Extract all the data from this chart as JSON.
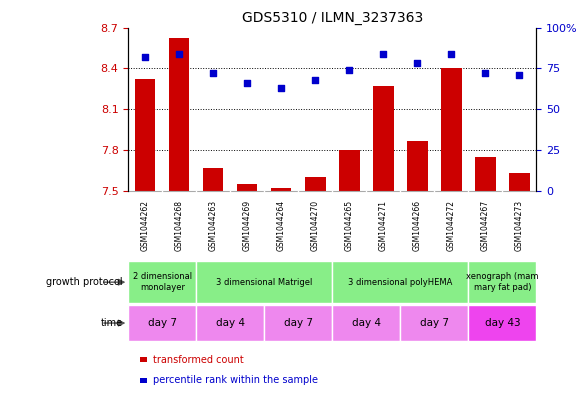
{
  "title": "GDS5310 / ILMN_3237363",
  "samples": [
    "GSM1044262",
    "GSM1044268",
    "GSM1044263",
    "GSM1044269",
    "GSM1044264",
    "GSM1044270",
    "GSM1044265",
    "GSM1044271",
    "GSM1044266",
    "GSM1044272",
    "GSM1044267",
    "GSM1044273"
  ],
  "bar_values": [
    8.32,
    8.62,
    7.67,
    7.55,
    7.52,
    7.6,
    7.8,
    8.27,
    7.87,
    8.4,
    7.75,
    7.63
  ],
  "scatter_values": [
    82,
    84,
    72,
    66,
    63,
    68,
    74,
    84,
    78,
    84,
    72,
    71
  ],
  "ylim_left": [
    7.5,
    8.7
  ],
  "ylim_right": [
    0,
    100
  ],
  "yticks_left": [
    7.5,
    7.8,
    8.1,
    8.4,
    8.7
  ],
  "yticks_right": [
    0,
    25,
    50,
    75,
    100
  ],
  "bar_color": "#cc0000",
  "scatter_color": "#0000cc",
  "bar_bottom": 7.5,
  "growth_protocol_groups": [
    {
      "label": "2 dimensional\nmonolayer",
      "start": 0,
      "end": 2,
      "color": "#88ee88"
    },
    {
      "label": "3 dimensional Matrigel",
      "start": 2,
      "end": 6,
      "color": "#88ee88"
    },
    {
      "label": "3 dimensional polyHEMA",
      "start": 6,
      "end": 10,
      "color": "#88ee88"
    },
    {
      "label": "xenograph (mam\nmary fat pad)",
      "start": 10,
      "end": 12,
      "color": "#88ee88"
    }
  ],
  "time_groups": [
    {
      "label": "day 7",
      "start": 0,
      "end": 2,
      "color": "#ee88ee"
    },
    {
      "label": "day 4",
      "start": 2,
      "end": 4,
      "color": "#ee88ee"
    },
    {
      "label": "day 7",
      "start": 4,
      "end": 6,
      "color": "#ee88ee"
    },
    {
      "label": "day 4",
      "start": 6,
      "end": 8,
      "color": "#ee88ee"
    },
    {
      "label": "day 7",
      "start": 8,
      "end": 10,
      "color": "#ee88ee"
    },
    {
      "label": "day 43",
      "start": 10,
      "end": 12,
      "color": "#ee44ee"
    }
  ],
  "legend_items": [
    {
      "label": "transformed count",
      "color": "#cc0000"
    },
    {
      "label": "percentile rank within the sample",
      "color": "#0000cc"
    }
  ],
  "left_label_color": "#cc0000",
  "right_label_color": "#0000cc",
  "bg_color": "#ffffff",
  "sample_row_bg": "#cccccc",
  "grid_line_color": "#000000"
}
